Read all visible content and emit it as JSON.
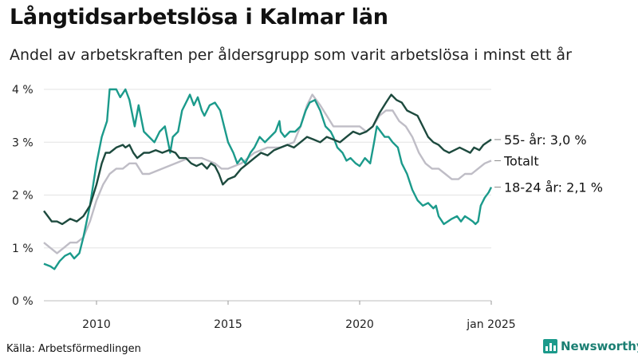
{
  "header": {
    "title": "Långtidsarbetslösa i Kalmar län",
    "subtitle": "Andel av arbetskraften per åldersgrupp som varit arbetslösa i minst ett år"
  },
  "footer": {
    "source": "Källa: Arbetsförmedlingen",
    "brand": "Newsworthy",
    "brand_icon": "bar-chart-logo-icon"
  },
  "chart_data": {
    "type": "line",
    "title": "Långtidsarbetslösa i Kalmar län",
    "subtitle": "Andel av arbetskraften per åldersgrupp som varit arbetslösa i minst ett år",
    "xlabel": "",
    "ylabel": "",
    "xlim": [
      2008.0,
      2025.0
    ],
    "ylim": [
      0,
      4
    ],
    "x_ticks": [
      {
        "value": 2010.0,
        "label": "2010"
      },
      {
        "value": 2015.0,
        "label": "2015"
      },
      {
        "value": 2020.0,
        "label": "2020"
      },
      {
        "value": 2025.0,
        "label": "jan 2025"
      }
    ],
    "y_ticks": [
      {
        "value": 0,
        "label": "0 %"
      },
      {
        "value": 1,
        "label": "1 %"
      },
      {
        "value": 2,
        "label": "2 %"
      },
      {
        "value": 3,
        "label": "3 %"
      },
      {
        "value": 4,
        "label": "4 %"
      }
    ],
    "grid": true,
    "series": [
      {
        "name": "Totalt",
        "end_label": "Totalt",
        "color": "#bfbdc6",
        "points": [
          [
            2008.0,
            1.1
          ],
          [
            2008.25,
            1.0
          ],
          [
            2008.5,
            0.9
          ],
          [
            2008.75,
            1.0
          ],
          [
            2009.0,
            1.1
          ],
          [
            2009.25,
            1.1
          ],
          [
            2009.5,
            1.2
          ],
          [
            2009.75,
            1.5
          ],
          [
            2010.0,
            1.9
          ],
          [
            2010.25,
            2.2
          ],
          [
            2010.5,
            2.4
          ],
          [
            2010.75,
            2.5
          ],
          [
            2011.0,
            2.5
          ],
          [
            2011.25,
            2.6
          ],
          [
            2011.5,
            2.6
          ],
          [
            2011.75,
            2.4
          ],
          [
            2012.0,
            2.4
          ],
          [
            2012.5,
            2.5
          ],
          [
            2013.0,
            2.6
          ],
          [
            2013.5,
            2.7
          ],
          [
            2014.0,
            2.7
          ],
          [
            2014.5,
            2.6
          ],
          [
            2014.75,
            2.5
          ],
          [
            2015.0,
            2.5
          ],
          [
            2015.5,
            2.6
          ],
          [
            2016.0,
            2.8
          ],
          [
            2016.5,
            2.9
          ],
          [
            2017.0,
            2.9
          ],
          [
            2017.5,
            3.0
          ],
          [
            2017.75,
            3.3
          ],
          [
            2018.0,
            3.7
          ],
          [
            2018.2,
            3.9
          ],
          [
            2018.5,
            3.7
          ],
          [
            2018.75,
            3.5
          ],
          [
            2019.0,
            3.3
          ],
          [
            2019.5,
            3.3
          ],
          [
            2020.0,
            3.3
          ],
          [
            2020.25,
            3.2
          ],
          [
            2020.5,
            3.3
          ],
          [
            2020.75,
            3.5
          ],
          [
            2021.0,
            3.6
          ],
          [
            2021.25,
            3.6
          ],
          [
            2021.5,
            3.4
          ],
          [
            2021.75,
            3.3
          ],
          [
            2022.0,
            3.1
          ],
          [
            2022.25,
            2.8
          ],
          [
            2022.5,
            2.6
          ],
          [
            2022.75,
            2.5
          ],
          [
            2023.0,
            2.5
          ],
          [
            2023.25,
            2.4
          ],
          [
            2023.5,
            2.3
          ],
          [
            2023.75,
            2.3
          ],
          [
            2024.0,
            2.4
          ],
          [
            2024.25,
            2.4
          ],
          [
            2024.5,
            2.5
          ],
          [
            2024.75,
            2.6
          ],
          [
            2025.0,
            2.65
          ]
        ]
      },
      {
        "name": "18-24 år",
        "end_label": "18-24 år: 2,1 %",
        "color": "#1b9a8b",
        "points": [
          [
            2008.0,
            0.7
          ],
          [
            2008.25,
            0.65
          ],
          [
            2008.4,
            0.6
          ],
          [
            2008.6,
            0.75
          ],
          [
            2008.8,
            0.85
          ],
          [
            2009.0,
            0.9
          ],
          [
            2009.15,
            0.8
          ],
          [
            2009.35,
            0.9
          ],
          [
            2009.5,
            1.2
          ],
          [
            2009.75,
            1.8
          ],
          [
            2010.0,
            2.6
          ],
          [
            2010.2,
            3.1
          ],
          [
            2010.4,
            3.4
          ],
          [
            2010.5,
            4.0
          ],
          [
            2010.75,
            4.0
          ],
          [
            2010.9,
            3.85
          ],
          [
            2011.1,
            4.0
          ],
          [
            2011.25,
            3.8
          ],
          [
            2011.45,
            3.3
          ],
          [
            2011.6,
            3.7
          ],
          [
            2011.8,
            3.2
          ],
          [
            2012.0,
            3.1
          ],
          [
            2012.2,
            3.0
          ],
          [
            2012.4,
            3.2
          ],
          [
            2012.6,
            3.3
          ],
          [
            2012.8,
            2.8
          ],
          [
            2012.9,
            3.1
          ],
          [
            2013.1,
            3.2
          ],
          [
            2013.25,
            3.6
          ],
          [
            2013.45,
            3.8
          ],
          [
            2013.55,
            3.9
          ],
          [
            2013.7,
            3.7
          ],
          [
            2013.85,
            3.85
          ],
          [
            2014.0,
            3.6
          ],
          [
            2014.1,
            3.5
          ],
          [
            2014.3,
            3.7
          ],
          [
            2014.5,
            3.75
          ],
          [
            2014.7,
            3.6
          ],
          [
            2014.85,
            3.3
          ],
          [
            2015.0,
            3.0
          ],
          [
            2015.2,
            2.8
          ],
          [
            2015.35,
            2.6
          ],
          [
            2015.5,
            2.7
          ],
          [
            2015.65,
            2.6
          ],
          [
            2015.85,
            2.8
          ],
          [
            2016.0,
            2.9
          ],
          [
            2016.2,
            3.1
          ],
          [
            2016.4,
            3.0
          ],
          [
            2016.6,
            3.1
          ],
          [
            2016.8,
            3.2
          ],
          [
            2016.95,
            3.4
          ],
          [
            2017.0,
            3.2
          ],
          [
            2017.15,
            3.1
          ],
          [
            2017.35,
            3.2
          ],
          [
            2017.55,
            3.2
          ],
          [
            2017.75,
            3.3
          ],
          [
            2017.95,
            3.6
          ],
          [
            2018.1,
            3.75
          ],
          [
            2018.3,
            3.8
          ],
          [
            2018.5,
            3.6
          ],
          [
            2018.7,
            3.3
          ],
          [
            2018.9,
            3.2
          ],
          [
            2019.0,
            3.1
          ],
          [
            2019.15,
            2.9
          ],
          [
            2019.35,
            2.8
          ],
          [
            2019.5,
            2.65
          ],
          [
            2019.65,
            2.7
          ],
          [
            2019.85,
            2.6
          ],
          [
            2020.0,
            2.55
          ],
          [
            2020.2,
            2.7
          ],
          [
            2020.4,
            2.6
          ],
          [
            2020.55,
            3.0
          ],
          [
            2020.65,
            3.3
          ],
          [
            2020.8,
            3.2
          ],
          [
            2020.95,
            3.1
          ],
          [
            2021.1,
            3.1
          ],
          [
            2021.25,
            3.0
          ],
          [
            2021.45,
            2.9
          ],
          [
            2021.6,
            2.6
          ],
          [
            2021.8,
            2.4
          ],
          [
            2022.0,
            2.1
          ],
          [
            2022.2,
            1.9
          ],
          [
            2022.4,
            1.8
          ],
          [
            2022.6,
            1.85
          ],
          [
            2022.8,
            1.75
          ],
          [
            2022.9,
            1.8
          ],
          [
            2023.0,
            1.6
          ],
          [
            2023.2,
            1.45
          ],
          [
            2023.35,
            1.5
          ],
          [
            2023.5,
            1.55
          ],
          [
            2023.7,
            1.6
          ],
          [
            2023.85,
            1.5
          ],
          [
            2024.0,
            1.6
          ],
          [
            2024.15,
            1.55
          ],
          [
            2024.3,
            1.5
          ],
          [
            2024.4,
            1.45
          ],
          [
            2024.5,
            1.5
          ],
          [
            2024.6,
            1.8
          ],
          [
            2024.75,
            1.95
          ],
          [
            2024.9,
            2.05
          ],
          [
            2025.0,
            2.15
          ]
        ]
      },
      {
        "name": "55- år",
        "end_label": "55- år: 3,0 %",
        "color": "#1d4a3e",
        "points": [
          [
            2008.0,
            1.7
          ],
          [
            2008.15,
            1.6
          ],
          [
            2008.3,
            1.5
          ],
          [
            2008.5,
            1.5
          ],
          [
            2008.7,
            1.45
          ],
          [
            2008.85,
            1.5
          ],
          [
            2009.0,
            1.55
          ],
          [
            2009.25,
            1.5
          ],
          [
            2009.5,
            1.6
          ],
          [
            2009.75,
            1.8
          ],
          [
            2010.0,
            2.2
          ],
          [
            2010.2,
            2.6
          ],
          [
            2010.35,
            2.8
          ],
          [
            2010.5,
            2.8
          ],
          [
            2010.75,
            2.9
          ],
          [
            2011.0,
            2.95
          ],
          [
            2011.1,
            2.9
          ],
          [
            2011.25,
            2.95
          ],
          [
            2011.4,
            2.8
          ],
          [
            2011.55,
            2.7
          ],
          [
            2011.8,
            2.8
          ],
          [
            2012.0,
            2.8
          ],
          [
            2012.25,
            2.85
          ],
          [
            2012.5,
            2.8
          ],
          [
            2012.75,
            2.85
          ],
          [
            2013.0,
            2.8
          ],
          [
            2013.15,
            2.7
          ],
          [
            2013.4,
            2.7
          ],
          [
            2013.6,
            2.6
          ],
          [
            2013.8,
            2.55
          ],
          [
            2014.0,
            2.6
          ],
          [
            2014.2,
            2.5
          ],
          [
            2014.35,
            2.6
          ],
          [
            2014.5,
            2.55
          ],
          [
            2014.65,
            2.4
          ],
          [
            2014.8,
            2.2
          ],
          [
            2015.0,
            2.3
          ],
          [
            2015.25,
            2.35
          ],
          [
            2015.5,
            2.5
          ],
          [
            2015.75,
            2.6
          ],
          [
            2016.0,
            2.7
          ],
          [
            2016.25,
            2.8
          ],
          [
            2016.5,
            2.75
          ],
          [
            2016.75,
            2.85
          ],
          [
            2017.0,
            2.9
          ],
          [
            2017.25,
            2.95
          ],
          [
            2017.5,
            2.9
          ],
          [
            2017.75,
            3.0
          ],
          [
            2018.0,
            3.1
          ],
          [
            2018.25,
            3.05
          ],
          [
            2018.5,
            3.0
          ],
          [
            2018.75,
            3.1
          ],
          [
            2019.0,
            3.05
          ],
          [
            2019.25,
            3.0
          ],
          [
            2019.5,
            3.1
          ],
          [
            2019.75,
            3.2
          ],
          [
            2020.0,
            3.15
          ],
          [
            2020.25,
            3.2
          ],
          [
            2020.5,
            3.3
          ],
          [
            2020.75,
            3.55
          ],
          [
            2021.0,
            3.75
          ],
          [
            2021.2,
            3.9
          ],
          [
            2021.4,
            3.8
          ],
          [
            2021.6,
            3.75
          ],
          [
            2021.8,
            3.6
          ],
          [
            2022.0,
            3.55
          ],
          [
            2022.2,
            3.5
          ],
          [
            2022.4,
            3.3
          ],
          [
            2022.6,
            3.1
          ],
          [
            2022.8,
            3.0
          ],
          [
            2023.0,
            2.95
          ],
          [
            2023.2,
            2.85
          ],
          [
            2023.4,
            2.8
          ],
          [
            2023.6,
            2.85
          ],
          [
            2023.8,
            2.9
          ],
          [
            2024.0,
            2.85
          ],
          [
            2024.2,
            2.8
          ],
          [
            2024.35,
            2.9
          ],
          [
            2024.55,
            2.85
          ],
          [
            2024.7,
            2.95
          ],
          [
            2024.85,
            3.0
          ],
          [
            2025.0,
            3.05
          ]
        ]
      }
    ]
  }
}
